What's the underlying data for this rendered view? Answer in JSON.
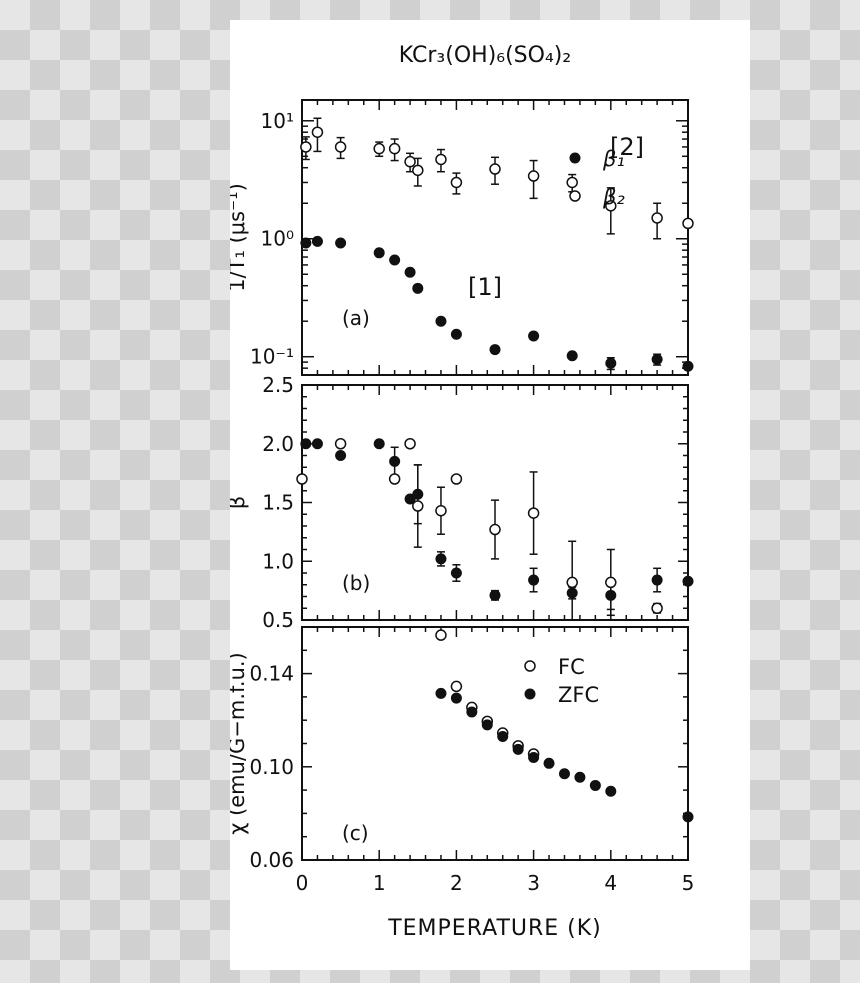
{
  "figure": {
    "title": "KCr₃(OH)₆(SO₄)₂",
    "xlabel": "TEMPERATURE (K)"
  },
  "chart_data": [
    {
      "type": "scatter",
      "panel_label": "(a)",
      "ylabel": "1/T₁ (μs⁻¹)",
      "yscale": "log",
      "xlim": [
        0,
        5
      ],
      "ylim": [
        0.07,
        15
      ],
      "x_ticks": [
        "0",
        "1",
        "2",
        "3",
        "4",
        "5"
      ],
      "y_ticks": [
        {
          "value": 10,
          "label": "10¹"
        },
        {
          "value": 1,
          "label": "10⁰"
        },
        {
          "value": 0.1,
          "label": "10⁻¹"
        }
      ],
      "series": [
        {
          "name": "[2]",
          "marker": "open-circle",
          "points": [
            {
              "x": 0.05,
              "y": 6.0,
              "yerr": 1.3
            },
            {
              "x": 0.2,
              "y": 8.0,
              "yerr": 2.5
            },
            {
              "x": 0.5,
              "y": 6.0,
              "yerr": 1.2
            },
            {
              "x": 1.0,
              "y": 5.8,
              "yerr": 0.8
            },
            {
              "x": 1.2,
              "y": 5.8,
              "yerr": 1.2
            },
            {
              "x": 1.4,
              "y": 4.5,
              "yerr": 0.8
            },
            {
              "x": 1.5,
              "y": 3.8,
              "yerr": 1.0
            },
            {
              "x": 1.8,
              "y": 4.7,
              "yerr": 1.0
            },
            {
              "x": 2.0,
              "y": 3.0,
              "yerr": 0.6
            },
            {
              "x": 2.5,
              "y": 3.9,
              "yerr": 1.0
            },
            {
              "x": 3.0,
              "y": 3.4,
              "yerr": 1.2
            },
            {
              "x": 3.5,
              "y": 3.0,
              "yerr": 0.5
            },
            {
              "x": 4.0,
              "y": 1.9,
              "yerr": 0.8
            },
            {
              "x": 4.6,
              "y": 1.5,
              "yerr": 0.5
            },
            {
              "x": 5.0,
              "y": 1.35,
              "yerr": 0
            }
          ]
        },
        {
          "name": "[1]",
          "marker": "filled-circle",
          "points": [
            {
              "x": 0.05,
              "y": 0.92,
              "yerr": 0
            },
            {
              "x": 0.2,
              "y": 0.95,
              "yerr": 0
            },
            {
              "x": 0.5,
              "y": 0.92,
              "yerr": 0
            },
            {
              "x": 1.0,
              "y": 0.76,
              "yerr": 0
            },
            {
              "x": 1.2,
              "y": 0.66,
              "yerr": 0
            },
            {
              "x": 1.4,
              "y": 0.52,
              "yerr": 0
            },
            {
              "x": 1.5,
              "y": 0.38,
              "yerr": 0
            },
            {
              "x": 1.8,
              "y": 0.2,
              "yerr": 0
            },
            {
              "x": 2.0,
              "y": 0.155,
              "yerr": 0
            },
            {
              "x": 2.5,
              "y": 0.115,
              "yerr": 0
            },
            {
              "x": 3.0,
              "y": 0.15,
              "yerr": 0
            },
            {
              "x": 3.5,
              "y": 0.102,
              "yerr": 0
            },
            {
              "x": 4.0,
              "y": 0.088,
              "yerr": 0.01
            },
            {
              "x": 4.6,
              "y": 0.095,
              "yerr": 0.01
            },
            {
              "x": 5.0,
              "y": 0.083,
              "yerr": 0
            }
          ]
        }
      ]
    },
    {
      "type": "scatter",
      "panel_label": "(b)",
      "ylabel": "β",
      "xlim": [
        0,
        5
      ],
      "ylim": [
        0.5,
        2.5
      ],
      "x_ticks": [
        "0",
        "1",
        "2",
        "3",
        "4",
        "5"
      ],
      "y_ticks": [
        {
          "value": 2.5,
          "label": "2.5"
        },
        {
          "value": 2.0,
          "label": "2.0"
        },
        {
          "value": 1.5,
          "label": "1.5"
        },
        {
          "value": 1.0,
          "label": "1.0"
        },
        {
          "value": 0.5,
          "label": "0.5"
        }
      ],
      "legend_position": "top-right",
      "series": [
        {
          "name": "β₁",
          "marker": "filled-circle",
          "points": [
            {
              "x": 0.05,
              "y": 2.0,
              "yerr": 0
            },
            {
              "x": 0.2,
              "y": 2.0,
              "yerr": 0
            },
            {
              "x": 0.5,
              "y": 1.9,
              "yerr": 0
            },
            {
              "x": 1.0,
              "y": 2.0,
              "yerr": 0
            },
            {
              "x": 1.2,
              "y": 1.85,
              "yerr": 0.12
            },
            {
              "x": 1.4,
              "y": 1.53,
              "yerr": 0
            },
            {
              "x": 1.5,
              "y": 1.57,
              "yerr": 0.25
            },
            {
              "x": 1.8,
              "y": 1.02,
              "yerr": 0.06
            },
            {
              "x": 2.0,
              "y": 0.9,
              "yerr": 0.07
            },
            {
              "x": 2.5,
              "y": 0.71,
              "yerr": 0.04
            },
            {
              "x": 3.0,
              "y": 0.84,
              "yerr": 0.1
            },
            {
              "x": 3.5,
              "y": 0.73,
              "yerr": 0.05
            },
            {
              "x": 4.0,
              "y": 0.71,
              "yerr": 0.12
            },
            {
              "x": 4.6,
              "y": 0.84,
              "yerr": 0.1
            },
            {
              "x": 5.0,
              "y": 0.83,
              "yerr": 0
            }
          ]
        },
        {
          "name": "β₂",
          "marker": "open-circle",
          "points": [
            {
              "x": 0.0,
              "y": 1.7,
              "yerr": 0
            },
            {
              "x": 0.5,
              "y": 2.0,
              "yerr": 0
            },
            {
              "x": 1.2,
              "y": 1.7,
              "yerr": 0
            },
            {
              "x": 1.4,
              "y": 2.0,
              "yerr": 0
            },
            {
              "x": 1.5,
              "y": 1.47,
              "yerr": 0.35
            },
            {
              "x": 1.8,
              "y": 1.43,
              "yerr": 0.2
            },
            {
              "x": 2.0,
              "y": 1.7,
              "yerr": 0
            },
            {
              "x": 2.5,
              "y": 1.27,
              "yerr": 0.25
            },
            {
              "x": 3.0,
              "y": 1.41,
              "yerr": 0.35
            },
            {
              "x": 3.5,
              "y": 0.82,
              "yerr": 0.35
            },
            {
              "x": 4.0,
              "y": 0.82,
              "yerr": 0.28
            },
            {
              "x": 4.6,
              "y": 0.6,
              "yerr": 0.04
            }
          ]
        }
      ]
    },
    {
      "type": "scatter",
      "panel_label": "(c)",
      "ylabel": "χ (emu/G−m.f.u.)",
      "xlim": [
        0,
        5
      ],
      "ylim": [
        0.06,
        0.16
      ],
      "x_ticks": [
        "0",
        "1",
        "2",
        "3",
        "4",
        "5"
      ],
      "y_ticks": [
        {
          "value": 0.14,
          "label": "0.14"
        },
        {
          "value": 0.1,
          "label": "0.10"
        },
        {
          "value": 0.06,
          "label": "0.06"
        }
      ],
      "legend_position": "top-right",
      "series": [
        {
          "name": "FC",
          "marker": "open-circle",
          "points": [
            {
              "x": 1.8,
              "y": 0.1565
            },
            {
              "x": 2.0,
              "y": 0.1345
            },
            {
              "x": 2.2,
              "y": 0.1255
            },
            {
              "x": 2.4,
              "y": 0.1195
            },
            {
              "x": 2.6,
              "y": 0.1145
            },
            {
              "x": 2.8,
              "y": 0.109
            },
            {
              "x": 3.0,
              "y": 0.1055
            }
          ]
        },
        {
          "name": "ZFC",
          "marker": "filled-circle",
          "points": [
            {
              "x": 1.8,
              "y": 0.1315
            },
            {
              "x": 2.0,
              "y": 0.1295
            },
            {
              "x": 2.2,
              "y": 0.1235
            },
            {
              "x": 2.4,
              "y": 0.118
            },
            {
              "x": 2.6,
              "y": 0.113
            },
            {
              "x": 2.8,
              "y": 0.1075
            },
            {
              "x": 3.0,
              "y": 0.104
            },
            {
              "x": 3.2,
              "y": 0.1015
            },
            {
              "x": 3.4,
              "y": 0.097
            },
            {
              "x": 3.6,
              "y": 0.0955
            },
            {
              "x": 3.8,
              "y": 0.092
            },
            {
              "x": 4.0,
              "y": 0.0895
            },
            {
              "x": 5.0,
              "y": 0.0785
            }
          ]
        }
      ]
    }
  ]
}
